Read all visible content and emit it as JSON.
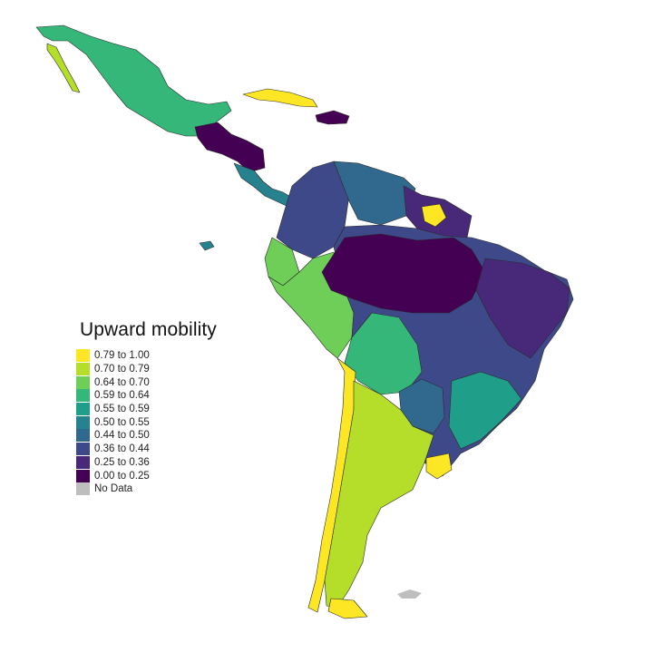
{
  "legend": {
    "title": "Upward mobility",
    "items": [
      {
        "label": "0.79 to 1.00",
        "color": "#fde725"
      },
      {
        "label": "0.70 to 0.79",
        "color": "#b5de2b"
      },
      {
        "label": "0.64 to 0.70",
        "color": "#6ece58"
      },
      {
        "label": "0.59 to 0.64",
        "color": "#35b779"
      },
      {
        "label": "0.55 to 0.59",
        "color": "#1f9e89"
      },
      {
        "label": "0.50 to 0.55",
        "color": "#26828e"
      },
      {
        "label": "0.44 to 0.50",
        "color": "#31688e"
      },
      {
        "label": "0.36 to 0.44",
        "color": "#3e4989"
      },
      {
        "label": "0.25 to 0.36",
        "color": "#482878"
      },
      {
        "label": "0.00 to 0.25",
        "color": "#440154"
      },
      {
        "label": "No Data",
        "color": "#bebebe"
      }
    ]
  }
}
